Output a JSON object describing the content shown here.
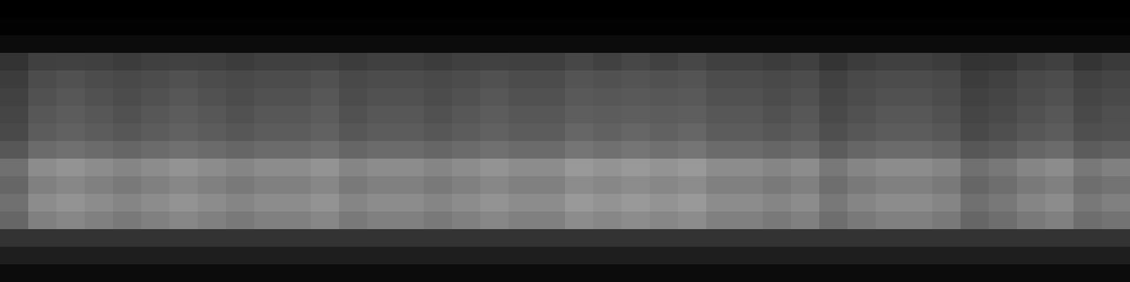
{
  "chart_data": {
    "type": "heatmap",
    "color": "gray",
    "tick_labels": false,
    "color_range": [
      0,
      1
    ],
    "cells": [
      [
        0,
        0,
        0,
        0,
        0,
        0,
        0,
        0,
        0,
        0,
        0,
        0,
        0,
        0,
        0,
        0,
        0,
        0,
        0,
        0,
        0,
        0,
        0,
        0,
        0,
        0,
        0,
        0,
        0,
        0,
        0,
        0,
        0,
        0,
        0,
        0,
        0,
        0,
        0,
        0
      ],
      [
        0.01,
        0.01,
        0.01,
        0.01,
        0.01,
        0.01,
        0.01,
        0.01,
        0.01,
        0.01,
        0.01,
        0.01,
        0.01,
        0.01,
        0.01,
        0.01,
        0.01,
        0.01,
        0.01,
        0.01,
        0.01,
        0.01,
        0.01,
        0.01,
        0.01,
        0.01,
        0.01,
        0.01,
        0.01,
        0.01,
        0.01,
        0.01,
        0.01,
        0.01,
        0.01,
        0.01,
        0.01,
        0.01,
        0.01,
        0.01
      ],
      [
        0.05,
        0.05,
        0.05,
        0.05,
        0.05,
        0.05,
        0.05,
        0.05,
        0.05,
        0.05,
        0.05,
        0.05,
        0.05,
        0.05,
        0.05,
        0.05,
        0.05,
        0.05,
        0.05,
        0.05,
        0.05,
        0.05,
        0.05,
        0.05,
        0.05,
        0.05,
        0.05,
        0.05,
        0.05,
        0.05,
        0.05,
        0.05,
        0.05,
        0.05,
        0.05,
        0.05,
        0.05,
        0.05,
        0.05,
        0.05
      ],
      [
        0.2,
        0.25,
        0.26,
        0.25,
        0.24,
        0.25,
        0.26,
        0.25,
        0.24,
        0.25,
        0.25,
        0.26,
        0.24,
        0.25,
        0.25,
        0.24,
        0.25,
        0.26,
        0.25,
        0.25,
        0.28,
        0.26,
        0.28,
        0.26,
        0.28,
        0.25,
        0.25,
        0.24,
        0.25,
        0.21,
        0.24,
        0.25,
        0.25,
        0.24,
        0.2,
        0.21,
        0.24,
        0.25,
        0.21,
        0.23
      ],
      [
        0.24,
        0.3,
        0.32,
        0.3,
        0.29,
        0.3,
        0.32,
        0.3,
        0.29,
        0.3,
        0.3,
        0.32,
        0.29,
        0.3,
        0.3,
        0.29,
        0.3,
        0.32,
        0.3,
        0.3,
        0.33,
        0.32,
        0.33,
        0.32,
        0.33,
        0.3,
        0.3,
        0.29,
        0.3,
        0.26,
        0.29,
        0.3,
        0.3,
        0.29,
        0.24,
        0.26,
        0.29,
        0.3,
        0.26,
        0.27
      ],
      [
        0.26,
        0.32,
        0.34,
        0.32,
        0.3,
        0.32,
        0.34,
        0.32,
        0.3,
        0.32,
        0.32,
        0.34,
        0.3,
        0.32,
        0.32,
        0.3,
        0.32,
        0.34,
        0.32,
        0.32,
        0.35,
        0.34,
        0.35,
        0.34,
        0.35,
        0.32,
        0.32,
        0.3,
        0.32,
        0.27,
        0.3,
        0.32,
        0.32,
        0.3,
        0.26,
        0.27,
        0.3,
        0.32,
        0.27,
        0.29
      ],
      [
        0.27,
        0.34,
        0.36,
        0.34,
        0.32,
        0.34,
        0.36,
        0.34,
        0.32,
        0.34,
        0.34,
        0.36,
        0.32,
        0.34,
        0.34,
        0.32,
        0.34,
        0.36,
        0.34,
        0.34,
        0.37,
        0.36,
        0.37,
        0.36,
        0.37,
        0.34,
        0.34,
        0.32,
        0.34,
        0.29,
        0.32,
        0.34,
        0.34,
        0.32,
        0.27,
        0.29,
        0.32,
        0.34,
        0.29,
        0.31
      ],
      [
        0.29,
        0.36,
        0.38,
        0.36,
        0.34,
        0.36,
        0.38,
        0.36,
        0.34,
        0.36,
        0.36,
        0.38,
        0.34,
        0.36,
        0.36,
        0.34,
        0.36,
        0.38,
        0.36,
        0.36,
        0.4,
        0.38,
        0.4,
        0.38,
        0.4,
        0.36,
        0.36,
        0.34,
        0.36,
        0.31,
        0.34,
        0.36,
        0.36,
        0.34,
        0.29,
        0.31,
        0.34,
        0.36,
        0.31,
        0.32
      ],
      [
        0.34,
        0.42,
        0.44,
        0.42,
        0.4,
        0.42,
        0.44,
        0.42,
        0.4,
        0.42,
        0.42,
        0.44,
        0.4,
        0.42,
        0.42,
        0.4,
        0.42,
        0.44,
        0.42,
        0.42,
        0.46,
        0.44,
        0.46,
        0.44,
        0.46,
        0.42,
        0.42,
        0.4,
        0.42,
        0.36,
        0.4,
        0.42,
        0.42,
        0.4,
        0.34,
        0.36,
        0.4,
        0.42,
        0.36,
        0.38
      ],
      [
        0.44,
        0.55,
        0.58,
        0.55,
        0.52,
        0.55,
        0.58,
        0.55,
        0.52,
        0.55,
        0.55,
        0.58,
        0.52,
        0.55,
        0.55,
        0.52,
        0.55,
        0.58,
        0.55,
        0.55,
        0.6,
        0.58,
        0.6,
        0.58,
        0.6,
        0.55,
        0.55,
        0.52,
        0.55,
        0.47,
        0.52,
        0.55,
        0.55,
        0.52,
        0.44,
        0.47,
        0.52,
        0.55,
        0.47,
        0.5
      ],
      [
        0.4,
        0.5,
        0.53,
        0.5,
        0.48,
        0.5,
        0.53,
        0.5,
        0.48,
        0.5,
        0.5,
        0.53,
        0.48,
        0.5,
        0.5,
        0.48,
        0.5,
        0.53,
        0.5,
        0.5,
        0.55,
        0.53,
        0.55,
        0.53,
        0.55,
        0.5,
        0.5,
        0.48,
        0.5,
        0.43,
        0.48,
        0.5,
        0.5,
        0.48,
        0.4,
        0.43,
        0.48,
        0.5,
        0.43,
        0.45
      ],
      [
        0.44,
        0.55,
        0.58,
        0.55,
        0.52,
        0.55,
        0.58,
        0.55,
        0.52,
        0.55,
        0.55,
        0.58,
        0.52,
        0.55,
        0.55,
        0.52,
        0.55,
        0.58,
        0.55,
        0.55,
        0.6,
        0.58,
        0.6,
        0.58,
        0.6,
        0.55,
        0.55,
        0.52,
        0.55,
        0.47,
        0.52,
        0.55,
        0.55,
        0.52,
        0.44,
        0.47,
        0.52,
        0.55,
        0.47,
        0.5
      ],
      [
        0.4,
        0.5,
        0.53,
        0.5,
        0.48,
        0.5,
        0.53,
        0.5,
        0.48,
        0.5,
        0.5,
        0.53,
        0.48,
        0.5,
        0.5,
        0.48,
        0.5,
        0.53,
        0.5,
        0.5,
        0.55,
        0.53,
        0.55,
        0.53,
        0.55,
        0.5,
        0.5,
        0.48,
        0.5,
        0.43,
        0.48,
        0.5,
        0.5,
        0.48,
        0.4,
        0.43,
        0.48,
        0.5,
        0.43,
        0.45
      ],
      [
        0.2,
        0.2,
        0.2,
        0.2,
        0.2,
        0.2,
        0.2,
        0.2,
        0.2,
        0.2,
        0.2,
        0.2,
        0.2,
        0.2,
        0.2,
        0.2,
        0.2,
        0.2,
        0.2,
        0.2,
        0.2,
        0.2,
        0.2,
        0.2,
        0.2,
        0.2,
        0.2,
        0.2,
        0.2,
        0.2,
        0.2,
        0.2,
        0.2,
        0.2,
        0.2,
        0.2,
        0.2,
        0.2,
        0.2,
        0.2
      ],
      [
        0.12,
        0.12,
        0.12,
        0.12,
        0.12,
        0.12,
        0.12,
        0.12,
        0.12,
        0.12,
        0.12,
        0.12,
        0.12,
        0.12,
        0.12,
        0.12,
        0.12,
        0.12,
        0.12,
        0.12,
        0.12,
        0.12,
        0.12,
        0.12,
        0.12,
        0.12,
        0.12,
        0.12,
        0.12,
        0.12,
        0.12,
        0.12,
        0.12,
        0.12,
        0.12,
        0.12,
        0.12,
        0.12,
        0.12,
        0.12
      ],
      [
        0.05,
        0.05,
        0.05,
        0.05,
        0.05,
        0.05,
        0.05,
        0.05,
        0.05,
        0.05,
        0.05,
        0.05,
        0.05,
        0.05,
        0.05,
        0.05,
        0.05,
        0.05,
        0.05,
        0.05,
        0.05,
        0.05,
        0.05,
        0.05,
        0.05,
        0.05,
        0.05,
        0.05,
        0.05,
        0.05,
        0.05,
        0.05,
        0.05,
        0.05,
        0.05,
        0.05,
        0.05,
        0.05,
        0.05,
        0.05
      ]
    ]
  }
}
